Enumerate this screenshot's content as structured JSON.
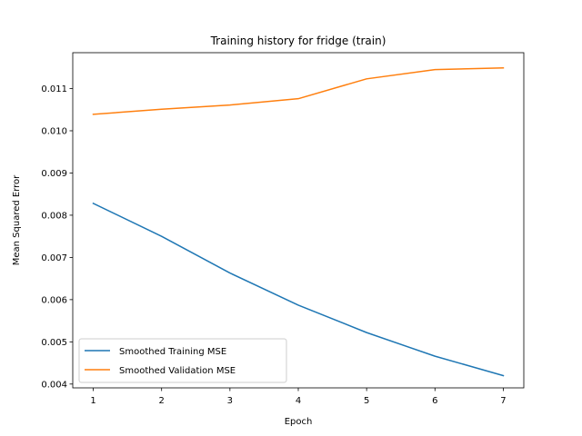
{
  "chart_data": {
    "type": "line",
    "title": "Training history for fridge (train)",
    "xlabel": "Epoch",
    "ylabel": "Mean Squared Error",
    "x": [
      1,
      2,
      3,
      4,
      5,
      6,
      7
    ],
    "xticks": [
      "1",
      "2",
      "3",
      "4",
      "5",
      "6",
      "7"
    ],
    "xlim": [
      0.7,
      7.3
    ],
    "yticks": [
      "0.004",
      "0.005",
      "0.006",
      "0.007",
      "0.008",
      "0.009",
      "0.010",
      "0.011"
    ],
    "ylim": [
      0.00391,
      0.01185
    ],
    "grid": false,
    "legend_position": "lower-left",
    "series": [
      {
        "name": "Smoothed Training MSE",
        "color": "#1f77b4",
        "values": [
          0.00828,
          0.0075,
          0.00663,
          0.00587,
          0.00522,
          0.00466,
          0.0042
        ]
      },
      {
        "name": "Smoothed Validation MSE",
        "color": "#ff7f0e",
        "values": [
          0.01039,
          0.01051,
          0.01061,
          0.01076,
          0.01123,
          0.01145,
          0.01149
        ]
      }
    ]
  }
}
